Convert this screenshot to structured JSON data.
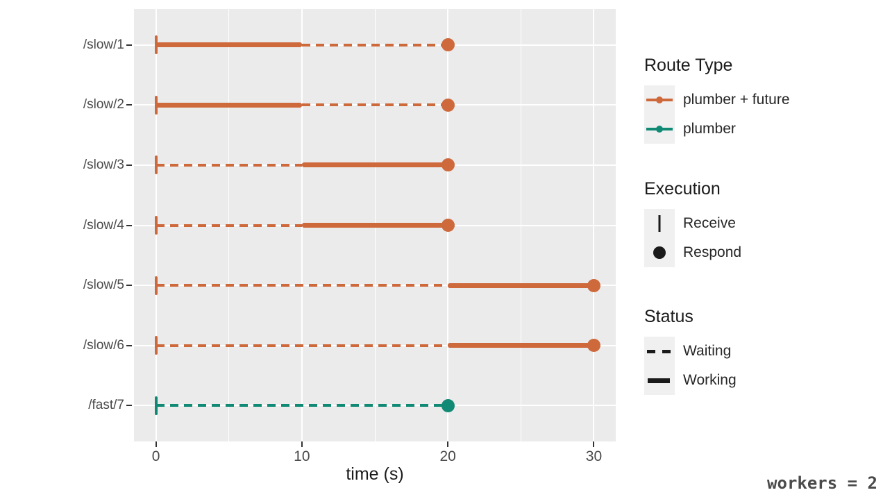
{
  "caption": {
    "text": "workers = 2",
    "color": "#4a4a4a"
  },
  "chart_data": {
    "type": "line",
    "subtype": "timeline-gantt",
    "title": "",
    "xlabel": "time (s)",
    "ylabel": "",
    "x_range": [
      -1.5,
      31.5
    ],
    "x_ticks": [
      0,
      10,
      20,
      30
    ],
    "x_tick_labels": [
      "0",
      "10",
      "20",
      "30"
    ],
    "x_minor_ticks": [
      5,
      15,
      25
    ],
    "panel_background": "#EBEBEB",
    "grid": "on",
    "legend_position": "right",
    "colors": {
      "plumber + future": "#CE693C",
      "plumber": "#108A75"
    },
    "rows": [
      {
        "label": "/slow/1",
        "route_type": "plumber + future",
        "receive": 0,
        "respond": 20,
        "segments": [
          {
            "status": "working",
            "start": 0,
            "end": 10
          },
          {
            "status": "waiting",
            "start": 10,
            "end": 20
          }
        ]
      },
      {
        "label": "/slow/2",
        "route_type": "plumber + future",
        "receive": 0,
        "respond": 20,
        "segments": [
          {
            "status": "working",
            "start": 0,
            "end": 10
          },
          {
            "status": "waiting",
            "start": 10,
            "end": 20
          }
        ]
      },
      {
        "label": "/slow/3",
        "route_type": "plumber + future",
        "receive": 0,
        "respond": 20,
        "segments": [
          {
            "status": "waiting",
            "start": 0,
            "end": 10
          },
          {
            "status": "working",
            "start": 10,
            "end": 20
          }
        ]
      },
      {
        "label": "/slow/4",
        "route_type": "plumber + future",
        "receive": 0,
        "respond": 20,
        "segments": [
          {
            "status": "waiting",
            "start": 0,
            "end": 10
          },
          {
            "status": "working",
            "start": 10,
            "end": 20
          }
        ]
      },
      {
        "label": "/slow/5",
        "route_type": "plumber + future",
        "receive": 0,
        "respond": 30,
        "segments": [
          {
            "status": "waiting",
            "start": 0,
            "end": 20
          },
          {
            "status": "working",
            "start": 20,
            "end": 30
          }
        ]
      },
      {
        "label": "/slow/6",
        "route_type": "plumber + future",
        "receive": 0,
        "respond": 30,
        "segments": [
          {
            "status": "waiting",
            "start": 0,
            "end": 20
          },
          {
            "status": "working",
            "start": 20,
            "end": 30
          }
        ]
      },
      {
        "label": "/fast/7",
        "route_type": "plumber",
        "receive": 0,
        "respond": 20,
        "segments": [
          {
            "status": "waiting",
            "start": 0,
            "end": 20
          }
        ]
      }
    ]
  },
  "legend": {
    "route_type": {
      "title": "Route Type",
      "entries": [
        {
          "label": "plumber + future",
          "color": "#CE693C"
        },
        {
          "label": "plumber",
          "color": "#108A75"
        }
      ]
    },
    "execution": {
      "title": "Execution",
      "entries": [
        {
          "label": "Receive"
        },
        {
          "label": "Respond"
        }
      ]
    },
    "status": {
      "title": "Status",
      "entries": [
        {
          "label": "Waiting"
        },
        {
          "label": "Working"
        }
      ]
    }
  }
}
